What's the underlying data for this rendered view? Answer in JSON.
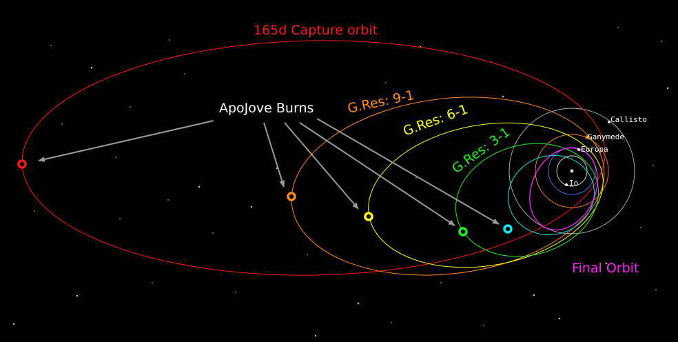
{
  "labels": {
    "capture": "165d Capture orbit",
    "burns": "ApoJove Burns",
    "res9": "G.Res: 9-1",
    "res6": "G.Res: 6-1",
    "res3": "G.Res: 3-1",
    "final": "Final Orbit"
  },
  "moons": {
    "callisto": "Callisto",
    "ganymede": "Ganymede",
    "europa": "Europa",
    "io": "Io"
  },
  "colors": {
    "background": "#000000",
    "capture": "#ff1a1a",
    "res9": "#ff8a1e",
    "res6": "#ffff1e",
    "res3": "#22ee22",
    "cyan_orbit": "#10e8ee",
    "final": "#ff22ff",
    "arrow": "#9a9a9a",
    "burns_text": "#ffffff",
    "moon_orbit": "#bdbdbd"
  }
}
